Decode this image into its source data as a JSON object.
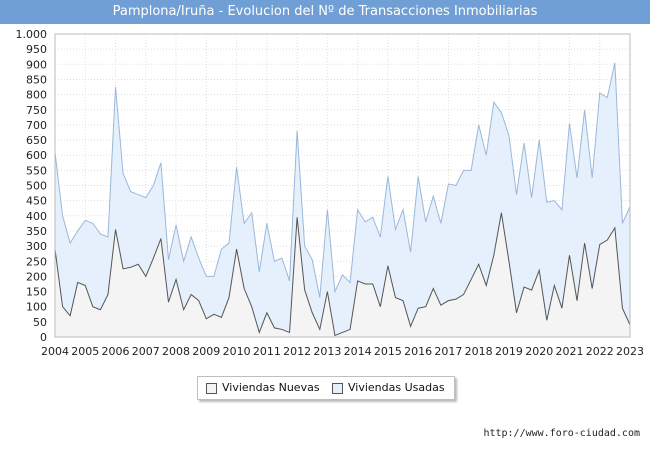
{
  "header": {
    "title": "Pamplona/Iruña - Evolucion del Nº de Transacciones Inmobiliarias"
  },
  "footer": {
    "source": "http://www.foro-ciudad.com"
  },
  "colors": {
    "title_bar": "#6f9fd4",
    "nuevas_fill": "#f4f4f4",
    "nuevas_line": "#555555",
    "usadas_fill": "#e5f0fc",
    "usadas_line": "#9ab8da"
  },
  "chart_data": {
    "type": "area",
    "title": "Pamplona/Iruña - Evolucion del Nº de Transacciones Inmobiliarias",
    "xlabel": "",
    "ylabel": "",
    "ylim": [
      0,
      1000
    ],
    "xlim": [
      2004,
      2023
    ],
    "x_tick_labels": [
      "2004",
      "2005",
      "2006",
      "2007",
      "2008",
      "2009",
      "2010",
      "2011",
      "2012",
      "2013",
      "2014",
      "2015",
      "2016",
      "2017",
      "2018",
      "2019",
      "2020",
      "2021",
      "2022",
      "2023"
    ],
    "y_tick_labels": [
      "0",
      "50",
      "100",
      "150",
      "200",
      "250",
      "300",
      "350",
      "400",
      "450",
      "500",
      "550",
      "600",
      "650",
      "700",
      "750",
      "800",
      "850",
      "900",
      "950",
      "1.000"
    ],
    "y_tick_values": [
      0,
      50,
      100,
      150,
      200,
      250,
      300,
      350,
      400,
      450,
      500,
      550,
      600,
      650,
      700,
      750,
      800,
      850,
      900,
      950,
      1000
    ],
    "grid": true,
    "legend_position": "bottom",
    "x": [
      2004,
      2004.25,
      2004.5,
      2004.75,
      2005,
      2005.25,
      2005.5,
      2005.75,
      2006,
      2006.25,
      2006.5,
      2006.75,
      2007,
      2007.25,
      2007.5,
      2007.75,
      2008,
      2008.25,
      2008.5,
      2008.75,
      2009,
      2009.25,
      2009.5,
      2009.75,
      2010,
      2010.25,
      2010.5,
      2010.75,
      2011,
      2011.25,
      2011.5,
      2011.75,
      2012,
      2012.25,
      2012.5,
      2012.75,
      2013,
      2013.25,
      2013.5,
      2013.75,
      2014,
      2014.25,
      2014.5,
      2014.75,
      2015,
      2015.25,
      2015.5,
      2015.75,
      2016,
      2016.25,
      2016.5,
      2016.75,
      2017,
      2017.25,
      2017.5,
      2017.75,
      2018,
      2018.25,
      2018.5,
      2018.75,
      2019,
      2019.25,
      2019.5,
      2019.75,
      2020,
      2020.25,
      2020.5,
      2020.75,
      2021,
      2021.25,
      2021.5,
      2021.75,
      2022,
      2022.25,
      2022.5,
      2022.75,
      2023
    ],
    "series": [
      {
        "name": "Viviendas Nuevas",
        "values": [
          290,
          100,
          70,
          180,
          170,
          100,
          90,
          140,
          355,
          225,
          230,
          240,
          200,
          260,
          325,
          115,
          190,
          90,
          140,
          120,
          60,
          75,
          65,
          130,
          290,
          160,
          100,
          15,
          80,
          30,
          25,
          15,
          395,
          155,
          80,
          25,
          150,
          5,
          15,
          25,
          185,
          175,
          175,
          100,
          235,
          130,
          120,
          35,
          95,
          100,
          160,
          105,
          120,
          125,
          140,
          190,
          240,
          170,
          270,
          410,
          250,
          80,
          165,
          155,
          220,
          55,
          170,
          95,
          270,
          120,
          310,
          160,
          305,
          320,
          360,
          95,
          40
        ]
      },
      {
        "name": "Viviendas Usadas",
        "values": [
          610,
          400,
          310,
          350,
          385,
          375,
          340,
          330,
          825,
          540,
          480,
          470,
          460,
          500,
          575,
          255,
          370,
          250,
          330,
          260,
          200,
          200,
          290,
          310,
          560,
          375,
          410,
          215,
          375,
          250,
          260,
          185,
          680,
          300,
          255,
          130,
          420,
          150,
          205,
          180,
          420,
          380,
          395,
          330,
          530,
          355,
          420,
          280,
          530,
          380,
          465,
          375,
          505,
          500,
          550,
          550,
          700,
          600,
          775,
          740,
          665,
          470,
          640,
          460,
          650,
          445,
          450,
          420,
          705,
          525,
          750,
          525,
          805,
          790,
          905,
          375,
          430
        ]
      }
    ]
  }
}
